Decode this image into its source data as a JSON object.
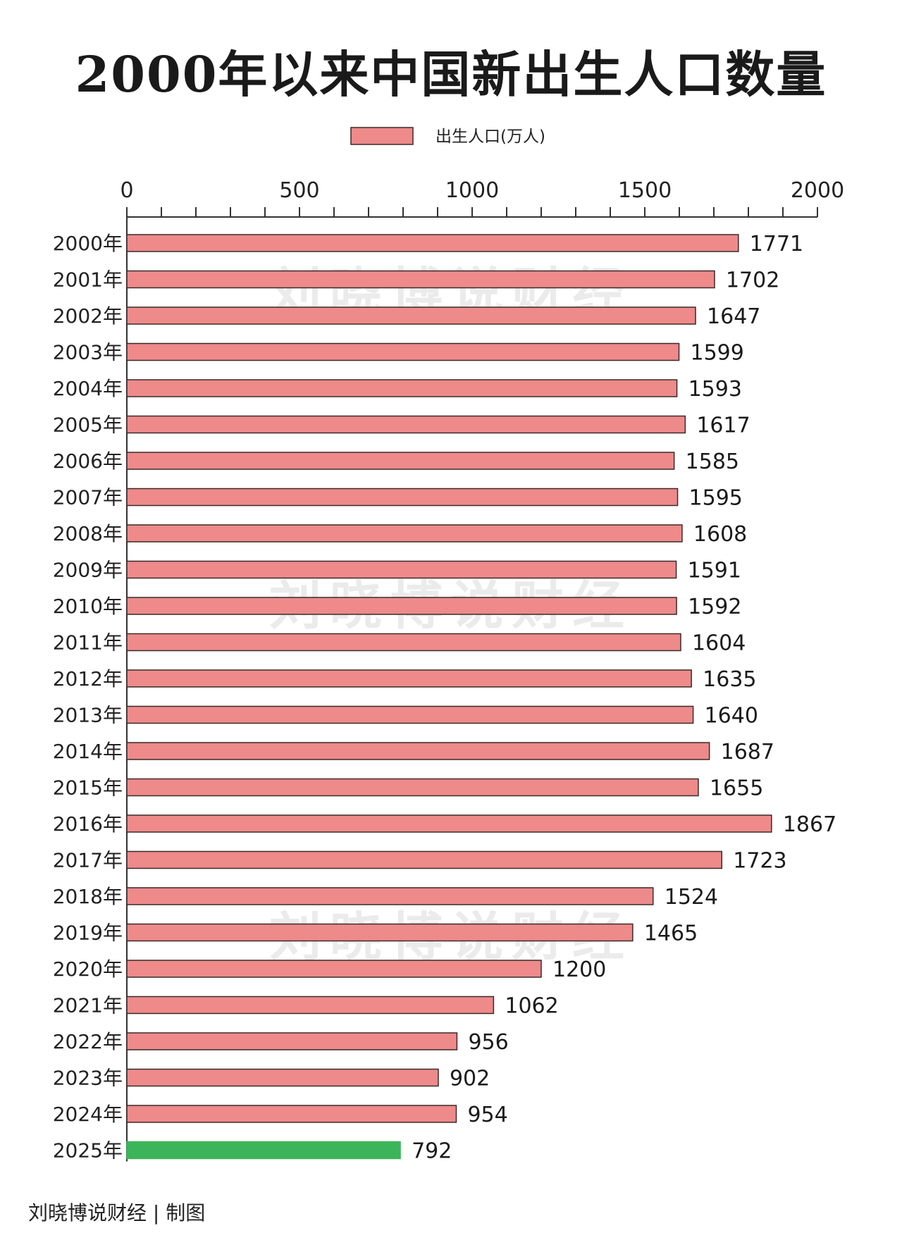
{
  "chart_data": {
    "type": "bar",
    "orientation": "horizontal",
    "title": "2000年以来中国新出生人口数量",
    "legend": {
      "label": "出生人口(万人)",
      "placement": "top-center"
    },
    "xlim": [
      0,
      2000
    ],
    "xticks": [
      0,
      500,
      1000,
      1500,
      2000
    ],
    "minor_tick_step": 100,
    "grid": false,
    "categories": [
      "2000年",
      "2001年",
      "2002年",
      "2003年",
      "2004年",
      "2005年",
      "2006年",
      "2007年",
      "2008年",
      "2009年",
      "2010年",
      "2011年",
      "2012年",
      "2013年",
      "2014年",
      "2015年",
      "2016年",
      "2017年",
      "2018年",
      "2019年",
      "2020年",
      "2021年",
      "2022年",
      "2023年",
      "2024年",
      "2025年"
    ],
    "values": [
      1771,
      1702,
      1647,
      1599,
      1593,
      1617,
      1585,
      1595,
      1608,
      1591,
      1592,
      1604,
      1635,
      1640,
      1687,
      1655,
      1867,
      1723,
      1524,
      1465,
      1200,
      1062,
      956,
      902,
      954,
      792
    ],
    "colors": {
      "bar": "#ee8a8a",
      "bar_stroke": "#3a2a2a",
      "highlight": "#3cb55a",
      "axis": "#333333"
    },
    "highlight_category": "2025年"
  },
  "watermark": "刘晓博说财经",
  "credit": "刘晓博说财经 | 制图"
}
